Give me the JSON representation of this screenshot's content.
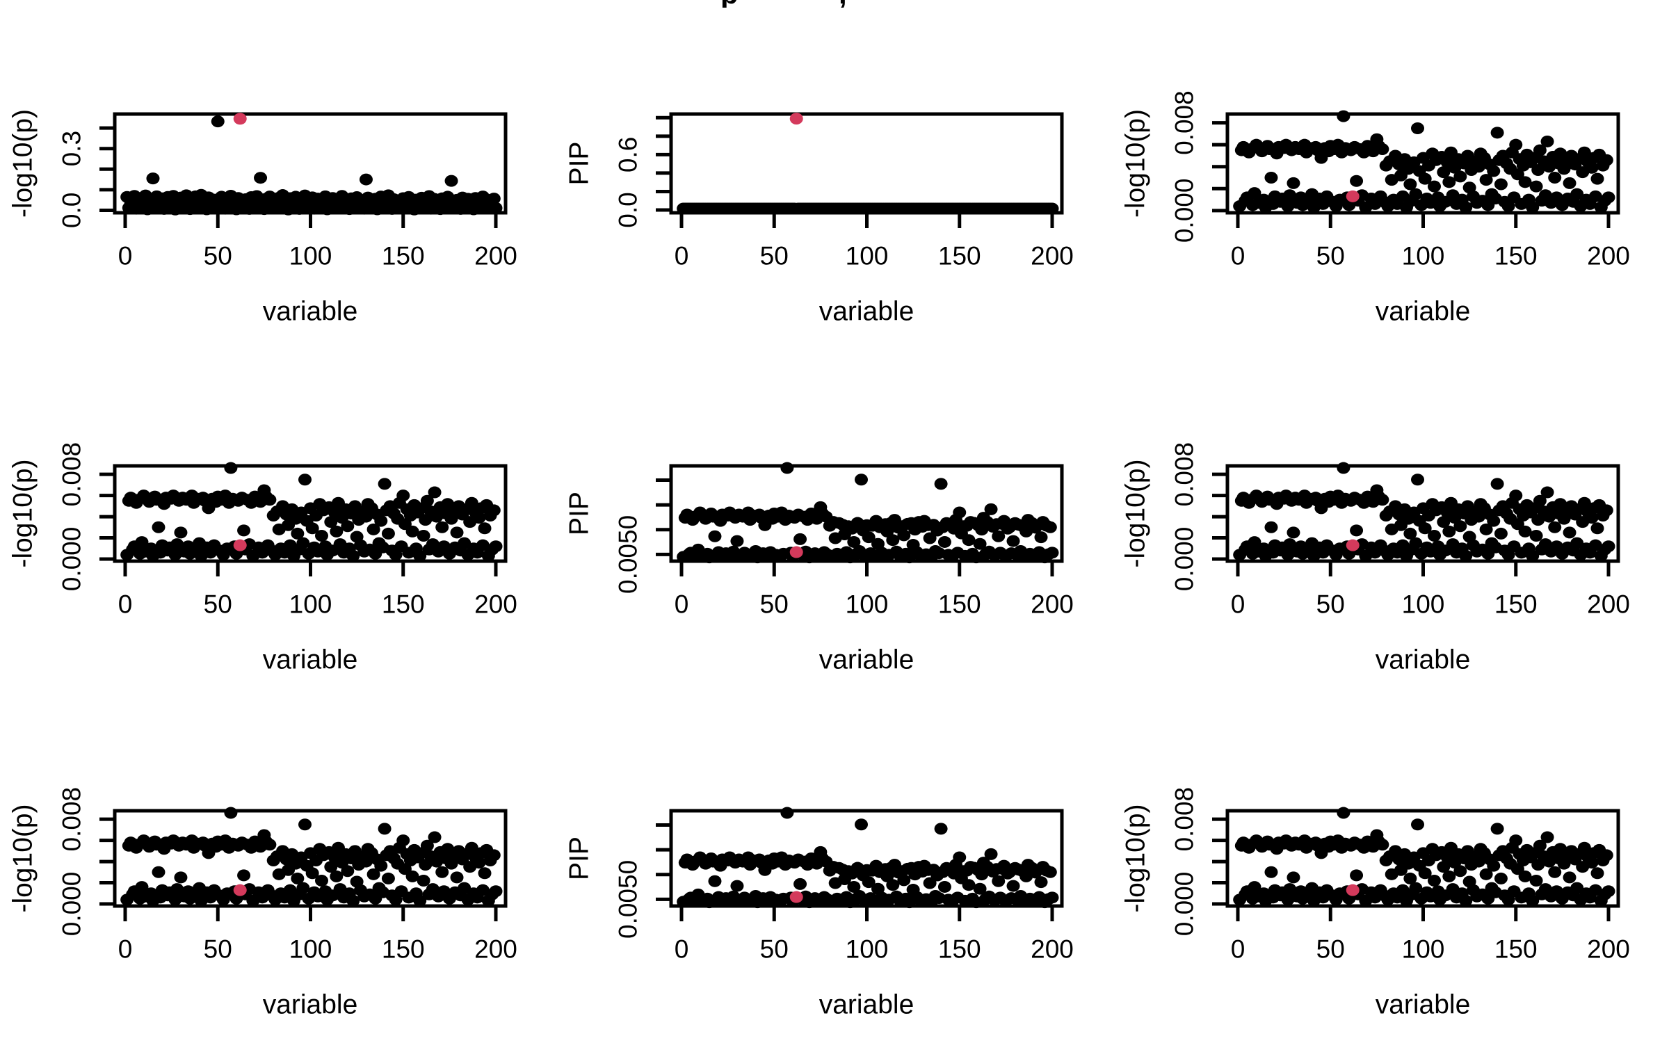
{
  "figure": {
    "background": "#ffffff",
    "title_fragments": [
      "p",
      ","
    ]
  },
  "chart_data": {
    "type": "scatter",
    "description_title": "3x3 grid of scatter panels, highlighted variable at x=62",
    "colors": {
      "point": "#000000",
      "highlight": "#D43A5C",
      "axis": "#000000"
    },
    "axes_common": {
      "xlabel": "variable",
      "xlim": [
        -7,
        207
      ],
      "xticks": [
        {
          "v": 0,
          "label": "0"
        },
        {
          "v": 50,
          "label": "50"
        },
        {
          "v": 100,
          "label": "100"
        },
        {
          "v": 150,
          "label": "150"
        },
        {
          "v": 200,
          "label": "200"
        }
      ]
    },
    "ylims": {
      "A": [
        -0.012,
        0.468
      ],
      "B": [
        -0.03,
        1.04
      ],
      "logp": [
        -0.0002,
        0.0088
      ],
      "pip": [
        -0.0002,
        0.0088
      ]
    },
    "ytick_sets": {
      "A": [
        {
          "value": 0.4,
          "label": ""
        },
        {
          "value": 0.3,
          "label": "0.3"
        },
        {
          "value": 0.2,
          "label": ""
        },
        {
          "value": 0.1,
          "label": ""
        },
        {
          "value": 0.0,
          "label": "0.0"
        }
      ],
      "B": [
        {
          "value": 1.0,
          "label": ""
        },
        {
          "value": 0.8,
          "label": ""
        },
        {
          "value": 0.6,
          "label": "0.6"
        },
        {
          "value": 0.4,
          "label": ""
        },
        {
          "value": 0.2,
          "label": ""
        },
        {
          "value": 0.0,
          "label": "0.0"
        }
      ],
      "logp": [
        {
          "value": 0.008,
          "label": "0.008"
        },
        {
          "value": 0.006,
          "label": ""
        },
        {
          "value": 0.004,
          "label": ""
        },
        {
          "value": 0.002,
          "label": ""
        },
        {
          "value": 0.0,
          "label": "0.000"
        }
      ],
      "pip": [
        {
          "value": 0.00745,
          "label": ""
        },
        {
          "value": 0.00511,
          "label": ""
        },
        {
          "value": 0.00277,
          "label": ""
        },
        {
          "value": 0.00043,
          "label": "0.0050"
        }
      ]
    },
    "pip_transform": [
      {
        "upto": 0.0015,
        "scale": 0.5,
        "offset": 0
      },
      {
        "upto": 0.0045,
        "scale": 0.9,
        "offset": -0.00055
      },
      {
        "upto": 0.00695,
        "scale": 1.0,
        "offset": -0.0016
      },
      {
        "upto": 1.0,
        "scale": 1.0,
        "offset": 0
      }
    ],
    "datasets": {
      "A": {
        "x_rule": {
          "start": 1,
          "step": 1
        },
        "red_index": 61,
        "y": [
          0.065,
          0.012,
          0.03,
          0.048,
          0.07,
          0.008,
          0.025,
          0.06,
          0.015,
          0.038,
          0.072,
          0.005,
          0.028,
          0.055,
          0.155,
          0.02,
          0.068,
          0.01,
          0.035,
          0.058,
          0.007,
          0.042,
          0.065,
          0.013,
          0.03,
          0.07,
          0.004,
          0.05,
          0.018,
          0.062,
          0.026,
          0.009,
          0.073,
          0.04,
          0.006,
          0.057,
          0.022,
          0.068,
          0.011,
          0.033,
          0.075,
          0.016,
          0.046,
          0.005,
          0.063,
          0.029,
          0.009,
          0.052,
          0.024,
          0.432,
          0.014,
          0.066,
          0.037,
          0.008,
          0.058,
          0.021,
          0.071,
          0.012,
          0.044,
          0.005,
          0.06,
          0.445,
          0.027,
          0.01,
          0.054,
          0.032,
          0.007,
          0.064,
          0.019,
          0.041,
          0.069,
          0.013,
          0.158,
          0.036,
          0.006,
          0.056,
          0.023,
          0.067,
          0.015,
          0.047,
          0.028,
          0.009,
          0.061,
          0.034,
          0.074,
          0.017,
          0.043,
          0.004,
          0.059,
          0.025,
          0.011,
          0.066,
          0.038,
          0.007,
          0.053,
          0.03,
          0.072,
          0.014,
          0.045,
          0.02,
          0.063,
          0.008,
          0.035,
          0.057,
          0.012,
          0.049,
          0.026,
          0.068,
          0.005,
          0.04,
          0.016,
          0.06,
          0.031,
          0.009,
          0.055,
          0.022,
          0.07,
          0.013,
          0.044,
          0.027,
          0.006,
          0.058,
          0.036,
          0.01,
          0.064,
          0.018,
          0.048,
          0.029,
          0.008,
          0.15,
          0.062,
          0.015,
          0.042,
          0.024,
          0.056,
          0.005,
          0.033,
          0.067,
          0.011,
          0.05,
          0.021,
          0.073,
          0.038,
          0.007,
          0.054,
          0.017,
          0.045,
          0.028,
          0.009,
          0.059,
          0.034,
          0.013,
          0.065,
          0.023,
          0.047,
          0.004,
          0.052,
          0.03,
          0.01,
          0.061,
          0.019,
          0.043,
          0.026,
          0.069,
          0.008,
          0.037,
          0.055,
          0.014,
          0.048,
          0.006,
          0.058,
          0.032,
          0.012,
          0.066,
          0.021,
          0.143,
          0.039,
          0.016,
          0.051,
          0.028,
          0.007,
          0.062,
          0.035,
          0.01,
          0.056,
          0.024,
          0.046,
          0.005,
          0.06,
          0.018,
          0.041,
          0.013,
          0.067,
          0.029,
          0.053,
          0.009,
          0.036,
          0.022,
          0.057,
          0.011
        ]
      },
      "B": {
        "x_rule": {
          "start": 1,
          "step": 1
        },
        "count": 200,
        "y_constant": 0.015,
        "red_index": 61,
        "red_y": 0.99
      },
      "C": {
        "x_rule": {
          "start": 1,
          "step": 1
        },
        "red_index": 61,
        "y": [
          0.0004,
          0.0055,
          0.0058,
          0.0009,
          0.0012,
          0.0053,
          0.0056,
          0.0005,
          0.0016,
          0.006,
          0.0007,
          0.0057,
          0.0054,
          0.001,
          0.0003,
          0.0059,
          0.0056,
          0.003,
          0.0006,
          0.0013,
          0.0052,
          0.0058,
          0.0008,
          0.0011,
          0.0057,
          0.006,
          0.0004,
          0.0014,
          0.0055,
          0.0025,
          0.0058,
          0.0007,
          0.0056,
          0.0012,
          0.0005,
          0.006,
          0.0053,
          0.0009,
          0.0057,
          0.0015,
          0.0003,
          0.0058,
          0.0055,
          0.0011,
          0.0048,
          0.0006,
          0.0057,
          0.0013,
          0.0054,
          0.0059,
          0.0008,
          0.0056,
          0.0004,
          0.006,
          0.001,
          0.0053,
          0.0086,
          0.0057,
          0.0012,
          0.0005,
          0.0055,
          0.0013,
          0.0058,
          0.0027,
          0.0009,
          0.0056,
          0.0014,
          0.0053,
          0.0003,
          0.0059,
          0.0057,
          0.0011,
          0.0054,
          0.0006,
          0.0065,
          0.0059,
          0.0013,
          0.0056,
          0.0008,
          0.0041,
          0.0004,
          0.0045,
          0.0028,
          0.001,
          0.005,
          0.0006,
          0.0042,
          0.0032,
          0.0013,
          0.0047,
          0.0003,
          0.0038,
          0.0024,
          0.0009,
          0.0044,
          0.0015,
          0.0075,
          0.0036,
          0.0005,
          0.0048,
          0.0029,
          0.0011,
          0.0041,
          0.0007,
          0.0052,
          0.0022,
          0.0046,
          0.0012,
          0.0004,
          0.0049,
          0.0035,
          0.0008,
          0.0044,
          0.0026,
          0.0053,
          0.0014,
          0.0039,
          0.0006,
          0.0047,
          0.0031,
          0.001,
          0.0043,
          0.0003,
          0.005,
          0.0021,
          0.0037,
          0.0013,
          0.0045,
          0.0007,
          0.004,
          0.0052,
          0.0009,
          0.0048,
          0.0028,
          0.0005,
          0.0042,
          0.0015,
          0.0036,
          0.0011,
          0.0071,
          0.0046,
          0.0024,
          0.005,
          0.0008,
          0.0043,
          0.0004,
          0.0038,
          0.0053,
          0.0012,
          0.006,
          0.0033,
          0.0047,
          0.0006,
          0.0041,
          0.0026,
          0.0051,
          0.001,
          0.0044,
          0.0003,
          0.0048,
          0.0022,
          0.0037,
          0.0055,
          0.0009,
          0.0045,
          0.0014,
          0.0063,
          0.004,
          0.0007,
          0.0049,
          0.003,
          0.0012,
          0.0043,
          0.0052,
          0.0005,
          0.0038,
          0.0046,
          0.0011,
          0.0025,
          0.005,
          0.0008,
          0.0042,
          0.0015,
          0.0047,
          0.0004,
          0.0035,
          0.0053,
          0.001,
          0.0044,
          0.0006,
          0.0039,
          0.0048,
          0.0013,
          0.0029,
          0.0051,
          0.0003,
          0.0041,
          0.0009,
          0.0046,
          0.0012
        ]
      }
    },
    "panels": [
      {
        "id": "top-left",
        "row": 0,
        "col": 0,
        "dataset": "A",
        "ylabel": "-log10(p)",
        "scale_key": "A"
      },
      {
        "id": "top-center",
        "row": 0,
        "col": 1,
        "dataset": "B",
        "ylabel": "PIP",
        "scale_key": "B"
      },
      {
        "id": "top-right",
        "row": 0,
        "col": 2,
        "dataset": "C",
        "ylabel": "-log10(p)",
        "scale_key": "logp"
      },
      {
        "id": "mid-left",
        "row": 1,
        "col": 0,
        "dataset": "C",
        "ylabel": "-log10(p)",
        "scale_key": "logp"
      },
      {
        "id": "mid-center",
        "row": 1,
        "col": 1,
        "dataset": "C",
        "ylabel": "PIP",
        "scale_key": "pip",
        "transform": "pip"
      },
      {
        "id": "mid-right",
        "row": 1,
        "col": 2,
        "dataset": "C",
        "ylabel": "-log10(p)",
        "scale_key": "logp"
      },
      {
        "id": "bottom-left",
        "row": 2,
        "col": 0,
        "dataset": "C",
        "ylabel": "-log10(p)",
        "scale_key": "logp"
      },
      {
        "id": "bottom-center",
        "row": 2,
        "col": 1,
        "dataset": "C",
        "ylabel": "PIP",
        "scale_key": "pip",
        "transform": "pip"
      },
      {
        "id": "bottom-right",
        "row": 2,
        "col": 2,
        "dataset": "C",
        "ylabel": "-log10(p)",
        "scale_key": "logp"
      }
    ]
  }
}
